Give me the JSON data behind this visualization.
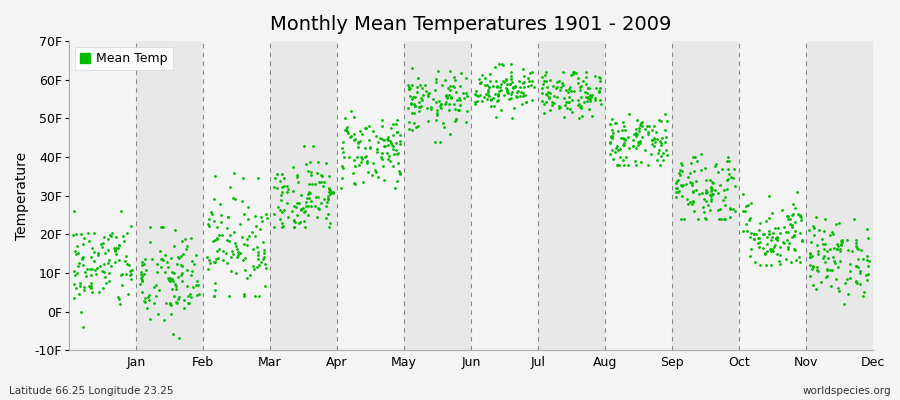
{
  "title": "Monthly Mean Temperatures 1901 - 2009",
  "ylabel": "Temperature",
  "bottom_left": "Latitude 66.25 Longitude 23.25",
  "bottom_right": "worldspecies.org",
  "legend_label": "Mean Temp",
  "ylim": [
    -10,
    70
  ],
  "yticks": [
    -10,
    0,
    10,
    20,
    30,
    40,
    50,
    60,
    70
  ],
  "ytick_labels": [
    "-10F",
    "0F",
    "10F",
    "20F",
    "30F",
    "40F",
    "50F",
    "60F",
    "70F"
  ],
  "months": [
    "Jan",
    "Feb",
    "Mar",
    "Apr",
    "May",
    "Jun",
    "Jul",
    "Aug",
    "Sep",
    "Oct",
    "Nov",
    "Dec"
  ],
  "month_means": [
    12,
    8,
    18,
    30,
    42,
    54,
    58,
    56,
    44,
    32,
    20,
    14
  ],
  "month_stds": [
    6,
    7,
    7,
    5,
    5,
    4,
    3,
    3,
    4,
    5,
    5,
    5
  ],
  "month_min": [
    -8,
    -12,
    4,
    22,
    32,
    44,
    50,
    50,
    38,
    24,
    12,
    2
  ],
  "month_max": [
    26,
    22,
    36,
    43,
    52,
    63,
    64,
    62,
    52,
    46,
    40,
    30
  ],
  "n_years": 109,
  "dot_color": "#00bb00",
  "bg_color": "#f4f4f4",
  "band_light": "#f4f4f4",
  "band_dark": "#e8e8e8",
  "title_fontsize": 14,
  "axis_fontsize": 10,
  "tick_fontsize": 9,
  "scatter_size": 4,
  "scatter_marker": "o"
}
